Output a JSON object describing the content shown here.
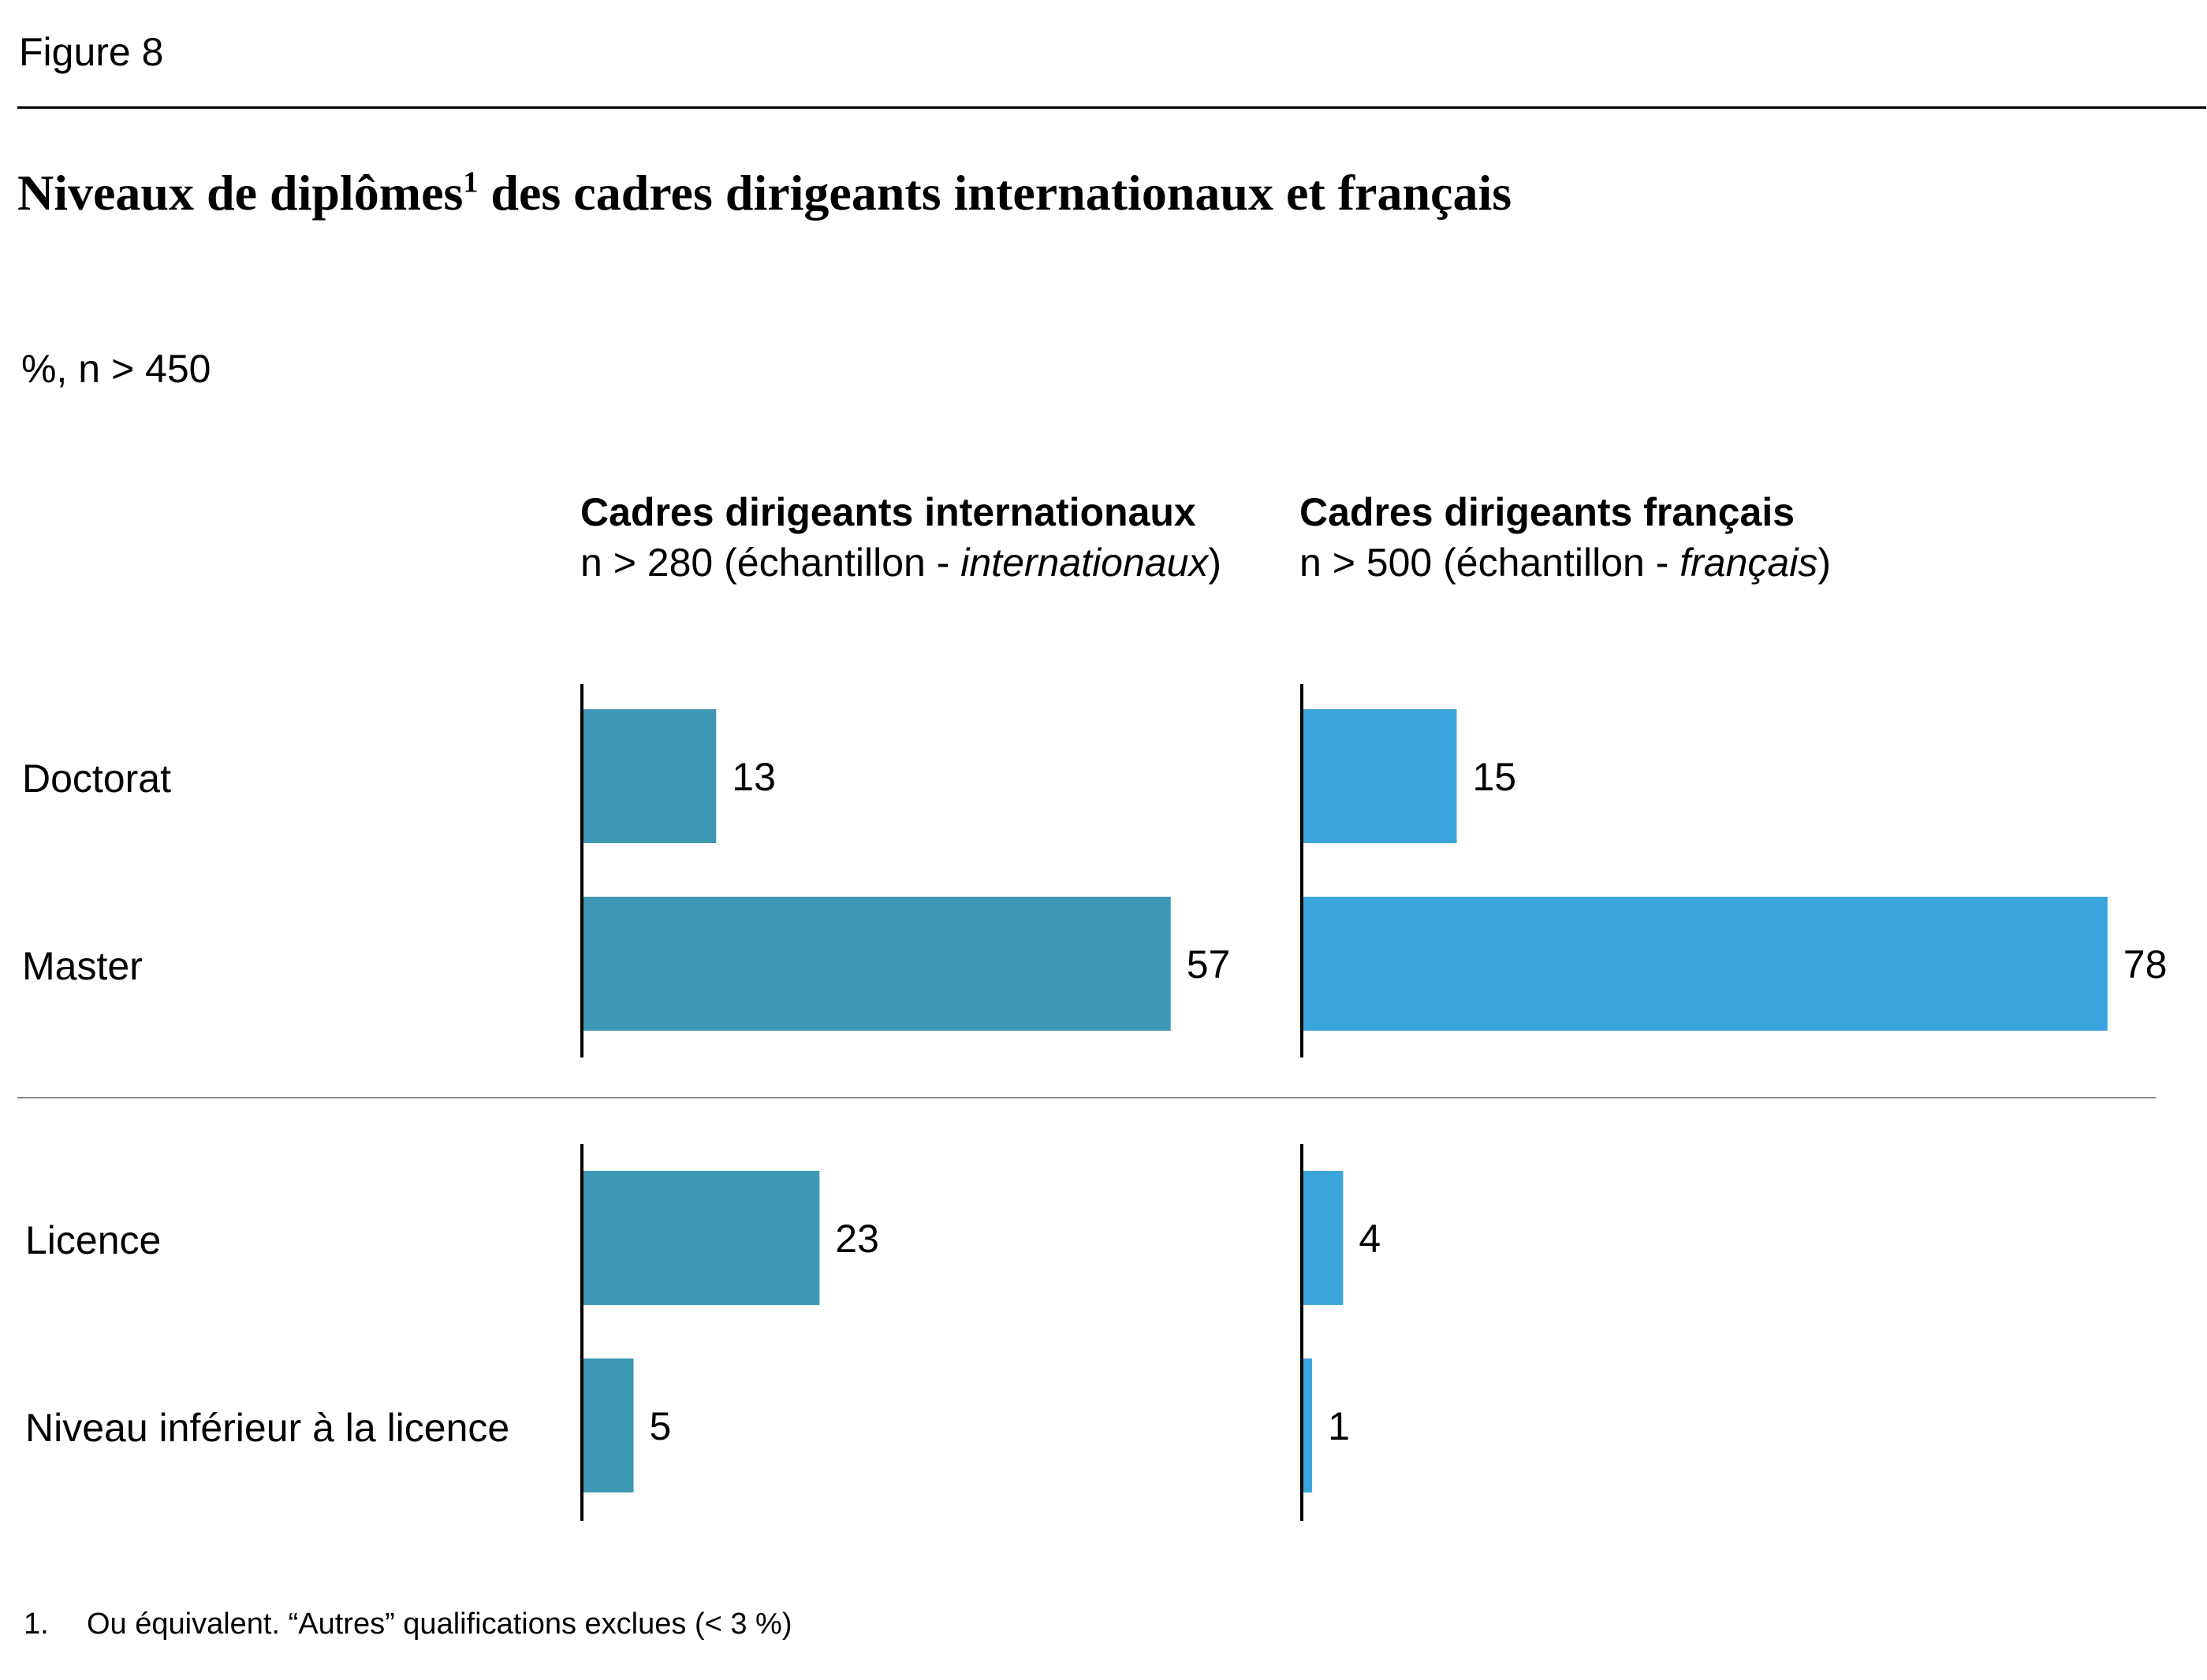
{
  "figure_label": "Figure 8",
  "title_main": "Niveaux de diplômes",
  "title_sup": "1",
  "title_rest": " des cadres dirigeants internationaux et français",
  "unit_note": "%, n > 450",
  "columns": [
    {
      "title": "Cadres dirigeants internationaux",
      "subtitle_prefix": "n > 280 (échantillon - ",
      "subtitle_italic": "internationaux",
      "subtitle_suffix": ")"
    },
    {
      "title": "Cadres dirigeants français",
      "subtitle_prefix": "n > 500 (échantillon - ",
      "subtitle_italic": "français",
      "subtitle_suffix": ")"
    }
  ],
  "footnote": {
    "number": "1.",
    "text": "Ou équivalent. “Autres” qualifications exclues (< 3 %)"
  },
  "colors": {
    "international": "#3d98b5",
    "french": "#3aa5dd"
  },
  "chart_data": {
    "type": "bar",
    "orientation": "horizontal",
    "categories": [
      "Doctorat",
      "Master",
      "Licence",
      "Niveau inférieur à la licence"
    ],
    "series": [
      {
        "name": "Cadres dirigeants internationaux",
        "values": [
          13,
          57,
          23,
          5
        ]
      },
      {
        "name": "Cadres dirigeants français",
        "values": [
          15,
          78,
          4,
          1
        ]
      }
    ],
    "xlim": [
      0,
      100
    ],
    "grid": false,
    "legend": "none"
  }
}
